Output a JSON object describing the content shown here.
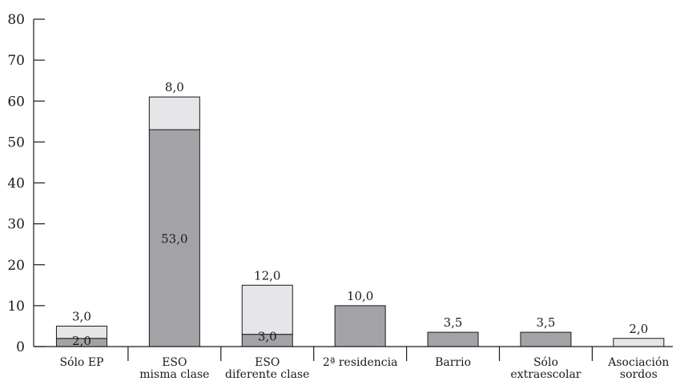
{
  "chart_data": {
    "type": "bar",
    "stacked": true,
    "categories": [
      [
        "Sólo EP"
      ],
      [
        "ESO",
        "misma clase"
      ],
      [
        "ESO",
        "diferente clase"
      ],
      [
        "2ª residencia"
      ],
      [
        "Barrio"
      ],
      [
        "Sólo",
        "extraescolar"
      ],
      [
        "Asociación",
        "sordos"
      ]
    ],
    "series": [
      {
        "color": "#a3a3a7",
        "values": [
          2.0,
          53.0,
          3.0,
          10.0,
          3.5,
          3.5,
          0
        ],
        "labels": [
          "2,0",
          "53,0",
          "3,0",
          "10,0",
          "3,5",
          "3,5",
          ""
        ]
      },
      {
        "color": "#e6e6e8",
        "values": [
          3.0,
          8.0,
          12.0,
          0,
          0,
          0,
          2.0
        ],
        "labels": [
          "3,0",
          "8,0",
          "12,0",
          "",
          "",
          "",
          "2,0"
        ]
      }
    ],
    "y_ticks": [
      0,
      10,
      20,
      30,
      40,
      50,
      60,
      70,
      80
    ],
    "ylim": [
      0,
      80
    ],
    "title": "",
    "xlabel": "",
    "ylabel": "",
    "grid": false,
    "legend": "none"
  }
}
